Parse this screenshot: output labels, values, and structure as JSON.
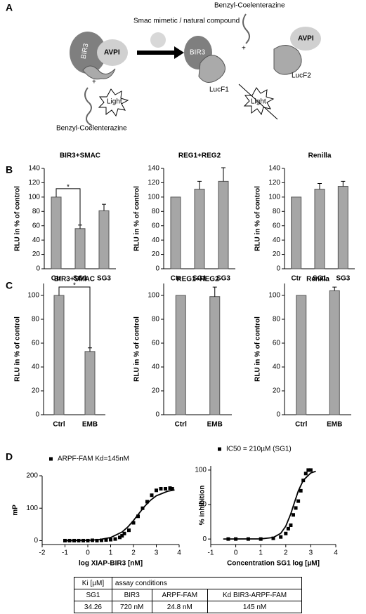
{
  "panel_labels": {
    "a": "A",
    "b": "B",
    "c": "C",
    "d": "D"
  },
  "diagram": {
    "arrow_label": "Smac mimetic / natural compound",
    "substrate_left": "Benzyl-Coelenterazine",
    "substrate_right": "Benzyl-Coelenterazine",
    "bir3_left": "BIR3",
    "avpi_left": "AVPI",
    "plus_left": "+",
    "light_left": "Light",
    "bir3_right": "BIR3",
    "avpi_right": "AVPI",
    "plus_right": "+",
    "lucf1": "LucF1",
    "lucf2": "LucF2",
    "light_right": "Light"
  },
  "chart_data": [
    {
      "type": "bar",
      "title": "BIR3+SMAC",
      "y_label": "RLU in % of control",
      "categories": [
        "Ctr",
        "SG1",
        "SG3"
      ],
      "values": [
        100,
        56,
        81
      ],
      "errors": [
        null,
        5,
        9
      ],
      "color": "#a6a6a6",
      "ylim": [
        0,
        140
      ],
      "yticks": [
        0,
        20,
        40,
        60,
        80,
        100,
        120,
        140
      ],
      "annotation": "*"
    },
    {
      "type": "bar",
      "title": "REG1+REG2",
      "y_label": "RLU in % of control",
      "categories": [
        "Ctr",
        "SG1",
        "SG3"
      ],
      "values": [
        100,
        111,
        122
      ],
      "errors": [
        null,
        11,
        19
      ],
      "color": "#a6a6a6",
      "ylim": [
        0,
        140
      ],
      "yticks": [
        0,
        20,
        40,
        60,
        80,
        100,
        120,
        140
      ]
    },
    {
      "type": "bar",
      "title": "Renilla",
      "y_label": "RLU in % of control",
      "categories": [
        "Ctr",
        "SG1",
        "SG3"
      ],
      "values": [
        100,
        111,
        115
      ],
      "errors": [
        null,
        8,
        7
      ],
      "color": "#a6a6a6",
      "ylim": [
        0,
        140
      ],
      "yticks": [
        0,
        20,
        40,
        60,
        80,
        100,
        120,
        140
      ]
    },
    {
      "type": "bar",
      "title": "BIR3+SMAC",
      "y_label": "RLU in % of control",
      "categories": [
        "Ctrl",
        "EMB"
      ],
      "values": [
        100,
        53
      ],
      "errors": [
        null,
        3
      ],
      "color": "#a6a6a6",
      "ylim": [
        0,
        110
      ],
      "yticks": [
        0,
        20,
        40,
        60,
        80,
        100
      ],
      "annotation": "*"
    },
    {
      "type": "bar",
      "title": "REG1+REG2",
      "y_label": "RLU in % of control",
      "categories": [
        "Ctrl",
        "EMB"
      ],
      "values": [
        100,
        99
      ],
      "errors": [
        null,
        8
      ],
      "color": "#a6a6a6",
      "ylim": [
        0,
        110
      ],
      "yticks": [
        0,
        20,
        40,
        60,
        80,
        100
      ]
    },
    {
      "type": "bar",
      "title": "Renilla",
      "y_label": "RLU in % of control",
      "categories": [
        "Ctrl",
        "EMB"
      ],
      "values": [
        100,
        104
      ],
      "errors": [
        null,
        3
      ],
      "color": "#a6a6a6",
      "ylim": [
        0,
        110
      ],
      "yticks": [
        0,
        20,
        40,
        60,
        80,
        100
      ]
    },
    {
      "type": "scatter",
      "x_label": "log XIAP-BIR3 [nM]",
      "y_label": "mP",
      "series": [
        {
          "name": "ARPF-FAM Kd=145nM",
          "color": "#000000",
          "x": [
            -1,
            -0.8,
            -0.6,
            -0.4,
            -0.2,
            0,
            0.2,
            0.4,
            0.6,
            0.8,
            1,
            1.2,
            1.4,
            1.5,
            1.6,
            1.8,
            2,
            2.2,
            2.4,
            2.6,
            2.8,
            3,
            3.2,
            3.4,
            3.6,
            3.7
          ],
          "values": [
            0,
            0,
            0,
            0,
            0,
            0,
            1,
            0,
            1,
            2,
            3,
            5,
            10,
            15,
            22,
            32,
            55,
            75,
            100,
            120,
            140,
            155,
            160,
            160,
            162,
            160
          ]
        }
      ],
      "fit": {
        "color": "#000000",
        "x": [
          -1,
          0,
          0.5,
          1,
          1.5,
          1.75,
          2,
          2.25,
          2.5,
          2.75,
          3,
          3.5,
          3.8
        ],
        "values": [
          0,
          1,
          3.1,
          9.5,
          26.6,
          41.9,
          61.9,
          84.6,
          106.6,
          124.8,
          138.2,
          152.4,
          156.1
        ]
      },
      "xlim": [
        -2,
        4
      ],
      "xticks": [
        -2,
        -1,
        0,
        1,
        2,
        3,
        4
      ],
      "ylim": [
        -12,
        200
      ],
      "yticks": [
        0,
        100,
        200
      ],
      "legend": "top-left"
    },
    {
      "type": "scatter",
      "x_label": "Concentration SG1 log [µM]",
      "y_label": "% inhibition",
      "series": [
        {
          "name": "IC50 = 210µM (SG1)",
          "color": "#000000",
          "x": [
            -0.3,
            0,
            0.5,
            1,
            1.5,
            1.8,
            2,
            2.1,
            2.2,
            2.3,
            2.4,
            2.5,
            2.6,
            2.7,
            2.8,
            2.9,
            3
          ],
          "values": [
            0,
            0,
            0,
            0,
            1,
            3,
            8,
            15,
            20,
            35,
            45,
            55,
            70,
            85,
            95,
            100,
            100
          ]
        }
      ],
      "fit": {
        "color": "#000000",
        "x": [
          -0.5,
          1,
          1.5,
          1.8,
          2,
          2.2,
          2.32,
          2.5,
          2.7,
          3,
          3.2
        ],
        "values": [
          0,
          0.2,
          2.2,
          8.3,
          18.6,
          36.5,
          50,
          69.6,
          85.2,
          95.8,
          98.2
        ]
      },
      "xlim": [
        -1,
        4
      ],
      "xticks": [
        -1,
        0,
        1,
        2,
        3,
        4
      ],
      "ylim": [
        -8,
        106
      ],
      "yticks": [
        0,
        50,
        100
      ],
      "legend": "top-left"
    }
  ],
  "table": {
    "header": [
      "Ki [µM]",
      "assay conditions"
    ],
    "rows": [
      [
        "SG1",
        "BIR3",
        "ARPF-FAM",
        "Kd BIR3-ARPF-FAM"
      ],
      [
        "34.26",
        "720 nM",
        "24.8 nM",
        "145 nM"
      ]
    ]
  }
}
